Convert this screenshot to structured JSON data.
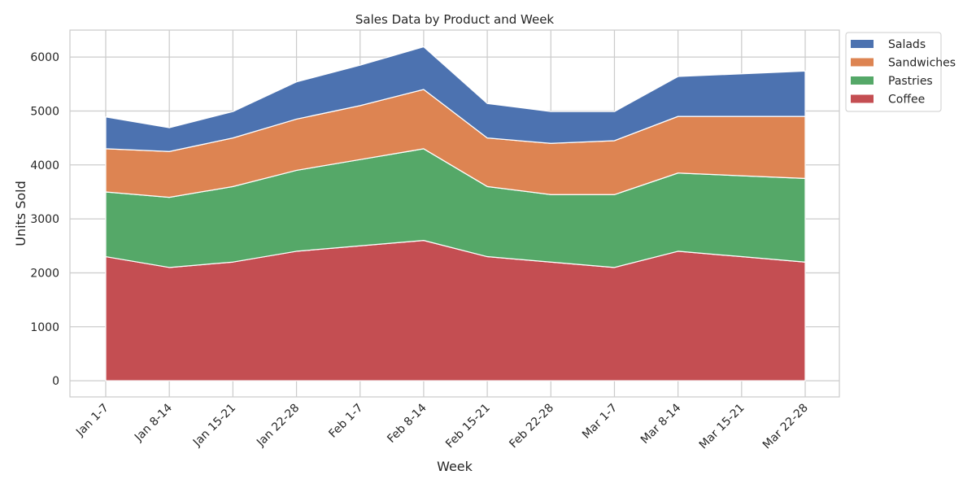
{
  "chart_data": {
    "type": "area",
    "stacked": true,
    "title": "Sales Data by Product and Week",
    "xlabel": "Week",
    "ylabel": "Units Sold",
    "ylim": [
      -300,
      6500
    ],
    "yticks": [
      0,
      1000,
      2000,
      3000,
      4000,
      5000,
      6000
    ],
    "grid": true,
    "legend_position": "upper-right-outside",
    "categories": [
      "Jan 1-7",
      "Jan 8-14",
      "Jan 15-21",
      "Jan 22-28",
      "Feb 1-7",
      "Feb 8-14",
      "Feb 15-21",
      "Feb 22-28",
      "Mar 1-7",
      "Mar 8-14",
      "Mar 15-21",
      "Mar 22-28"
    ],
    "series": [
      {
        "name": "Coffee",
        "color": "#c44e52",
        "values": [
          2300,
          2100,
          2200,
          2400,
          2500,
          2600,
          2300,
          2200,
          2100,
          2400,
          2300,
          2200
        ]
      },
      {
        "name": "Pastries",
        "color": "#55a868",
        "values": [
          1200,
          1300,
          1400,
          1500,
          1600,
          1700,
          1300,
          1250,
          1350,
          1450,
          1500,
          1550
        ]
      },
      {
        "name": "Sandwiches",
        "color": "#dd8452",
        "values": [
          800,
          850,
          900,
          950,
          1000,
          1100,
          900,
          950,
          1000,
          1050,
          1100,
          1150
        ]
      },
      {
        "name": "Salads",
        "color": "#4c72b0",
        "values": [
          590,
          440,
          490,
          690,
          750,
          790,
          640,
          590,
          540,
          740,
          790,
          840
        ]
      }
    ],
    "legend_order": [
      "Salads",
      "Sandwiches",
      "Pastries",
      "Coffee"
    ]
  }
}
